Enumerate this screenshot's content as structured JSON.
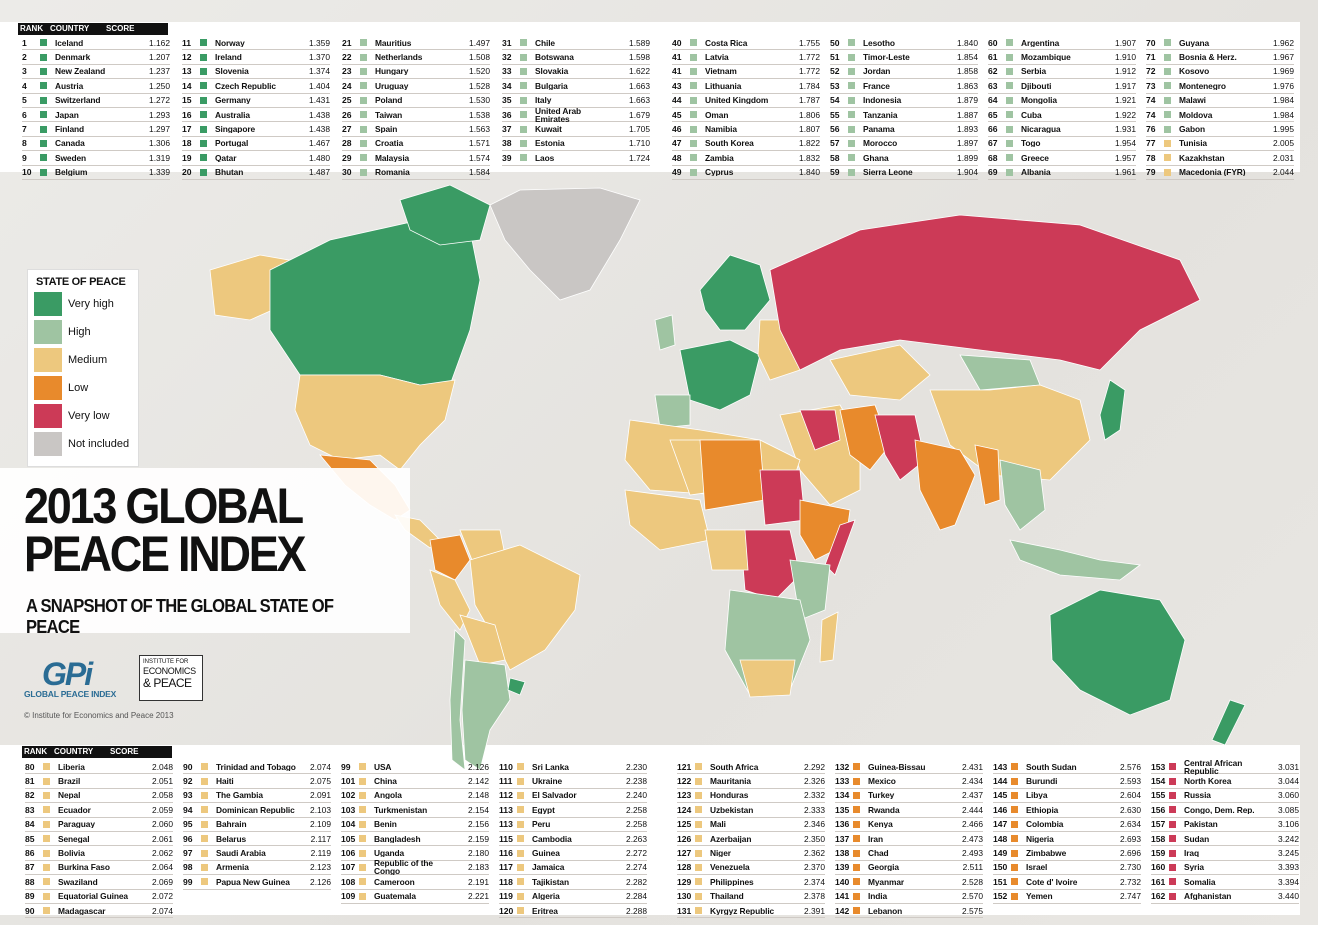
{
  "colors": {
    "very_high": "#3a9b64",
    "high": "#9fc4a2",
    "medium": "#edc87e",
    "low": "#e88a2c",
    "very_low": "#cc3a57",
    "not_included": "#c9c6c4"
  },
  "table_header": {
    "rank": "RANK",
    "country": "COUNTRY",
    "score": "SCORE"
  },
  "top_tables": [
    [
      [
        "1",
        "Iceland",
        "1.162",
        "very_high"
      ],
      [
        "2",
        "Denmark",
        "1.207",
        "very_high"
      ],
      [
        "3",
        "New Zealand",
        "1.237",
        "very_high"
      ],
      [
        "4",
        "Austria",
        "1.250",
        "very_high"
      ],
      [
        "5",
        "Switzerland",
        "1.272",
        "very_high"
      ],
      [
        "6",
        "Japan",
        "1.293",
        "very_high"
      ],
      [
        "7",
        "Finland",
        "1.297",
        "very_high"
      ],
      [
        "8",
        "Canada",
        "1.306",
        "very_high"
      ],
      [
        "9",
        "Sweden",
        "1.319",
        "very_high"
      ],
      [
        "10",
        "Belgium",
        "1.339",
        "very_high"
      ]
    ],
    [
      [
        "11",
        "Norway",
        "1.359",
        "very_high"
      ],
      [
        "12",
        "Ireland",
        "1.370",
        "very_high"
      ],
      [
        "13",
        "Slovenia",
        "1.374",
        "very_high"
      ],
      [
        "14",
        "Czech Republic",
        "1.404",
        "very_high"
      ],
      [
        "15",
        "Germany",
        "1.431",
        "very_high"
      ],
      [
        "16",
        "Australia",
        "1.438",
        "very_high"
      ],
      [
        "17",
        "Singapore",
        "1.438",
        "very_high"
      ],
      [
        "18",
        "Portugal",
        "1.467",
        "very_high"
      ],
      [
        "19",
        "Qatar",
        "1.480",
        "very_high"
      ],
      [
        "20",
        "Bhutan",
        "1.487",
        "very_high"
      ]
    ],
    [
      [
        "21",
        "Mauritius",
        "1.497",
        "high"
      ],
      [
        "22",
        "Netherlands",
        "1.508",
        "high"
      ],
      [
        "23",
        "Hungary",
        "1.520",
        "high"
      ],
      [
        "24",
        "Uruguay",
        "1.528",
        "high"
      ],
      [
        "25",
        "Poland",
        "1.530",
        "high"
      ],
      [
        "26",
        "Taiwan",
        "1.538",
        "high"
      ],
      [
        "27",
        "Spain",
        "1.563",
        "high"
      ],
      [
        "28",
        "Croatia",
        "1.571",
        "high"
      ],
      [
        "29",
        "Malaysia",
        "1.574",
        "high"
      ],
      [
        "30",
        "Romania",
        "1.584",
        "high"
      ]
    ],
    [
      [
        "31",
        "Chile",
        "1.589",
        "high"
      ],
      [
        "32",
        "Botswana",
        "1.598",
        "high"
      ],
      [
        "33",
        "Slovakia",
        "1.622",
        "high"
      ],
      [
        "34",
        "Bulgaria",
        "1.663",
        "high"
      ],
      [
        "35",
        "Italy",
        "1.663",
        "high"
      ],
      [
        "36",
        "United Arab Emirates",
        "1.679",
        "high"
      ],
      [
        "37",
        "Kuwait",
        "1.705",
        "high"
      ],
      [
        "38",
        "Estonia",
        "1.710",
        "high"
      ],
      [
        "39",
        "Laos",
        "1.724",
        "high"
      ]
    ],
    [
      [
        "40",
        "Costa Rica",
        "1.755",
        "high"
      ],
      [
        "41",
        "Latvia",
        "1.772",
        "high"
      ],
      [
        "41",
        "Vietnam",
        "1.772",
        "high"
      ],
      [
        "43",
        "Lithuania",
        "1.784",
        "high"
      ],
      [
        "44",
        "United Kingdom",
        "1.787",
        "high"
      ],
      [
        "45",
        "Oman",
        "1.806",
        "high"
      ],
      [
        "46",
        "Namibia",
        "1.807",
        "high"
      ],
      [
        "47",
        "South Korea",
        "1.822",
        "high"
      ],
      [
        "48",
        "Zambia",
        "1.832",
        "high"
      ],
      [
        "49",
        "Cyprus",
        "1.840",
        "high"
      ]
    ],
    [
      [
        "50",
        "Lesotho",
        "1.840",
        "high"
      ],
      [
        "51",
        "Timor-Leste",
        "1.854",
        "high"
      ],
      [
        "52",
        "Jordan",
        "1.858",
        "high"
      ],
      [
        "53",
        "France",
        "1.863",
        "high"
      ],
      [
        "54",
        "Indonesia",
        "1.879",
        "high"
      ],
      [
        "55",
        "Tanzania",
        "1.887",
        "high"
      ],
      [
        "56",
        "Panama",
        "1.893",
        "high"
      ],
      [
        "57",
        "Morocco",
        "1.897",
        "high"
      ],
      [
        "58",
        "Ghana",
        "1.899",
        "high"
      ],
      [
        "59",
        "Sierra Leone",
        "1.904",
        "high"
      ]
    ],
    [
      [
        "60",
        "Argentina",
        "1.907",
        "high"
      ],
      [
        "61",
        "Mozambique",
        "1.910",
        "high"
      ],
      [
        "62",
        "Serbia",
        "1.912",
        "high"
      ],
      [
        "63",
        "Djibouti",
        "1.917",
        "high"
      ],
      [
        "64",
        "Mongolia",
        "1.921",
        "high"
      ],
      [
        "65",
        "Cuba",
        "1.922",
        "high"
      ],
      [
        "66",
        "Nicaragua",
        "1.931",
        "high"
      ],
      [
        "67",
        "Togo",
        "1.954",
        "high"
      ],
      [
        "68",
        "Greece",
        "1.957",
        "high"
      ],
      [
        "69",
        "Albania",
        "1.961",
        "high"
      ]
    ],
    [
      [
        "70",
        "Guyana",
        "1.962",
        "high"
      ],
      [
        "71",
        "Bosnia & Herz.",
        "1.967",
        "high"
      ],
      [
        "72",
        "Kosovo",
        "1.969",
        "high"
      ],
      [
        "73",
        "Montenegro",
        "1.976",
        "high"
      ],
      [
        "74",
        "Malawi",
        "1.984",
        "high"
      ],
      [
        "74",
        "Moldova",
        "1.984",
        "high"
      ],
      [
        "76",
        "Gabon",
        "1.995",
        "high"
      ],
      [
        "77",
        "Tunisia",
        "2.005",
        "medium"
      ],
      [
        "78",
        "Kazakhstan",
        "2.031",
        "medium"
      ],
      [
        "79",
        "Macedonia (FYR)",
        "2.044",
        "medium"
      ]
    ]
  ],
  "bottom_tables": [
    [
      [
        "80",
        "Liberia",
        "2.048",
        "medium"
      ],
      [
        "81",
        "Brazil",
        "2.051",
        "medium"
      ],
      [
        "82",
        "Nepal",
        "2.058",
        "medium"
      ],
      [
        "83",
        "Ecuador",
        "2.059",
        "medium"
      ],
      [
        "84",
        "Paraguay",
        "2.060",
        "medium"
      ],
      [
        "85",
        "Senegal",
        "2.061",
        "medium"
      ],
      [
        "86",
        "Bolivia",
        "2.062",
        "medium"
      ],
      [
        "87",
        "Burkina Faso",
        "2.064",
        "medium"
      ],
      [
        "88",
        "Swaziland",
        "2.069",
        "medium"
      ],
      [
        "89",
        "Equatorial Guinea",
        "2.072",
        "medium"
      ],
      [
        "90",
        "Madagascar",
        "2.074",
        "medium"
      ]
    ],
    [
      [
        "90",
        "Trinidad and Tobago",
        "2.074",
        "medium"
      ],
      [
        "92",
        "Haiti",
        "2.075",
        "medium"
      ],
      [
        "93",
        "The Gambia",
        "2.091",
        "medium"
      ],
      [
        "94",
        "Dominican Republic",
        "2.103",
        "medium"
      ],
      [
        "95",
        "Bahrain",
        "2.109",
        "medium"
      ],
      [
        "96",
        "Belarus",
        "2.117",
        "medium"
      ],
      [
        "97",
        "Saudi Arabia",
        "2.119",
        "medium"
      ],
      [
        "98",
        "Armenia",
        "2.123",
        "medium"
      ],
      [
        "99",
        "Papua New Guinea",
        "2.126",
        "medium"
      ]
    ],
    [
      [
        "99",
        "USA",
        "2.126",
        "medium"
      ],
      [
        "101",
        "China",
        "2.142",
        "medium"
      ],
      [
        "102",
        "Angola",
        "2.148",
        "medium"
      ],
      [
        "103",
        "Turkmenistan",
        "2.154",
        "medium"
      ],
      [
        "104",
        "Benin",
        "2.156",
        "medium"
      ],
      [
        "105",
        "Bangladesh",
        "2.159",
        "medium"
      ],
      [
        "106",
        "Uganda",
        "2.180",
        "medium"
      ],
      [
        "107",
        "Republic of the Congo",
        "2.183",
        "medium"
      ],
      [
        "108",
        "Cameroon",
        "2.191",
        "medium"
      ],
      [
        "109",
        "Guatemala",
        "2.221",
        "medium"
      ]
    ],
    [
      [
        "110",
        "Sri Lanka",
        "2.230",
        "medium"
      ],
      [
        "111",
        "Ukraine",
        "2.238",
        "medium"
      ],
      [
        "112",
        "El Salvador",
        "2.240",
        "medium"
      ],
      [
        "113",
        "Egypt",
        "2.258",
        "medium"
      ],
      [
        "113",
        "Peru",
        "2.258",
        "medium"
      ],
      [
        "115",
        "Cambodia",
        "2.263",
        "medium"
      ],
      [
        "116",
        "Guinea",
        "2.272",
        "medium"
      ],
      [
        "117",
        "Jamaica",
        "2.274",
        "medium"
      ],
      [
        "118",
        "Tajikistan",
        "2.282",
        "medium"
      ],
      [
        "119",
        "Algeria",
        "2.284",
        "medium"
      ],
      [
        "120",
        "Eritrea",
        "2.288",
        "medium"
      ]
    ],
    [
      [
        "121",
        "South Africa",
        "2.292",
        "medium"
      ],
      [
        "122",
        "Mauritania",
        "2.326",
        "medium"
      ],
      [
        "123",
        "Honduras",
        "2.332",
        "medium"
      ],
      [
        "124",
        "Uzbekistan",
        "2.333",
        "medium"
      ],
      [
        "125",
        "Mali",
        "2.346",
        "medium"
      ],
      [
        "126",
        "Azerbaijan",
        "2.350",
        "medium"
      ],
      [
        "127",
        "Niger",
        "2.362",
        "medium"
      ],
      [
        "128",
        "Venezuela",
        "2.370",
        "medium"
      ],
      [
        "129",
        "Philippines",
        "2.374",
        "medium"
      ],
      [
        "130",
        "Thailand",
        "2.378",
        "medium"
      ],
      [
        "131",
        "Kyrgyz Republic",
        "2.391",
        "medium"
      ]
    ],
    [
      [
        "132",
        "Guinea-Bissau",
        "2.431",
        "low"
      ],
      [
        "133",
        "Mexico",
        "2.434",
        "low"
      ],
      [
        "134",
        "Turkey",
        "2.437",
        "low"
      ],
      [
        "135",
        "Rwanda",
        "2.444",
        "low"
      ],
      [
        "136",
        "Kenya",
        "2.466",
        "low"
      ],
      [
        "137",
        "Iran",
        "2.473",
        "low"
      ],
      [
        "138",
        "Chad",
        "2.493",
        "low"
      ],
      [
        "139",
        "Georgia",
        "2.511",
        "low"
      ],
      [
        "140",
        "Myanmar",
        "2.528",
        "low"
      ],
      [
        "141",
        "India",
        "2.570",
        "low"
      ],
      [
        "142",
        "Lebanon",
        "2.575",
        "low"
      ]
    ],
    [
      [
        "143",
        "South Sudan",
        "2.576",
        "low"
      ],
      [
        "144",
        "Burundi",
        "2.593",
        "low"
      ],
      [
        "145",
        "Libya",
        "2.604",
        "low"
      ],
      [
        "146",
        "Ethiopia",
        "2.630",
        "low"
      ],
      [
        "147",
        "Colombia",
        "2.634",
        "low"
      ],
      [
        "148",
        "Nigeria",
        "2.693",
        "low"
      ],
      [
        "149",
        "Zimbabwe",
        "2.696",
        "low"
      ],
      [
        "150",
        "Israel",
        "2.730",
        "low"
      ],
      [
        "151",
        "Cote d' Ivoire",
        "2.732",
        "low"
      ],
      [
        "152",
        "Yemen",
        "2.747",
        "low"
      ]
    ],
    [
      [
        "153",
        "Central African Republic",
        "3.031",
        "very_low"
      ],
      [
        "154",
        "North Korea",
        "3.044",
        "very_low"
      ],
      [
        "155",
        "Russia",
        "3.060",
        "very_low"
      ],
      [
        "156",
        "Congo, Dem. Rep.",
        "3.085",
        "very_low"
      ],
      [
        "157",
        "Pakistan",
        "3.106",
        "very_low"
      ],
      [
        "158",
        "Sudan",
        "3.242",
        "very_low"
      ],
      [
        "159",
        "Iraq",
        "3.245",
        "very_low"
      ],
      [
        "160",
        "Syria",
        "3.393",
        "very_low"
      ],
      [
        "161",
        "Somalia",
        "3.394",
        "very_low"
      ],
      [
        "162",
        "Afghanistan",
        "3.440",
        "very_low"
      ]
    ]
  ],
  "legend": {
    "title": "STATE OF PEACE",
    "items": [
      {
        "label": "Very high",
        "color": "#3a9b64"
      },
      {
        "label": "High",
        "color": "#9fc4a2"
      },
      {
        "label": "Medium",
        "color": "#edc87e"
      },
      {
        "label": "Low",
        "color": "#e88a2c"
      },
      {
        "label": "Very low",
        "color": "#cc3a57"
      },
      {
        "label": "Not included",
        "color": "#c9c6c4"
      }
    ]
  },
  "title": {
    "line1": "2013 GLOBAL",
    "line2": "PEACE INDEX",
    "subtitle": "A SNAPSHOT OF THE GLOBAL STATE OF PEACE"
  },
  "logos": {
    "gpi_mark": "GPi",
    "gpi_name": "GLOBAL PEACE INDEX",
    "iep_a": "INSTITUTE FOR",
    "iep_b": "ECONOMICS",
    "iep_c": "& PEACE"
  },
  "copyright": "© Institute for Economics and Peace 2013"
}
